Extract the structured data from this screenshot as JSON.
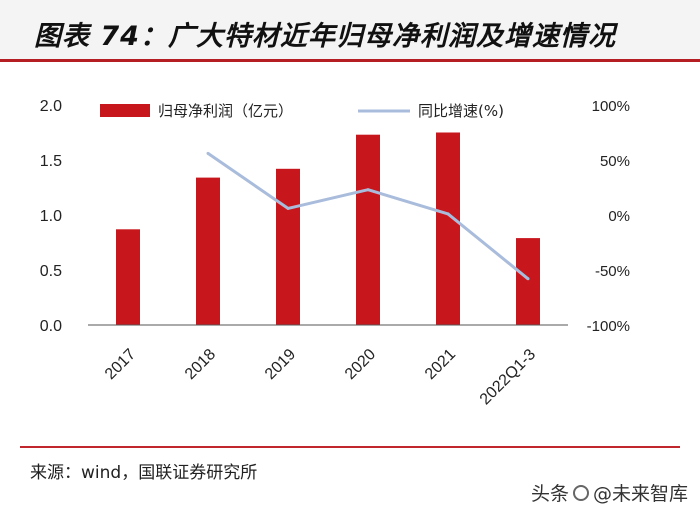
{
  "header": {
    "title": "图表 74：广大特材近年归母净利润及增速情况"
  },
  "footer": {
    "source": "来源：wind，国联证券研究所",
    "watermark_prefix": "头条",
    "watermark_suffix": "@未来智库"
  },
  "chart_data": {
    "type": "bar",
    "title": "",
    "categories": [
      "2017",
      "2018",
      "2019",
      "2020",
      "2021",
      "2022Q1-3"
    ],
    "series": [
      {
        "name": "归母净利润（亿元）",
        "type": "bar",
        "axis": "left",
        "color": "#c8161d",
        "values": [
          0.87,
          1.34,
          1.42,
          1.73,
          1.75,
          0.79
        ]
      },
      {
        "name": "同比增速(%)",
        "type": "line",
        "axis": "right",
        "color": "#a9bcdc",
        "values": [
          null,
          56,
          6,
          23,
          1,
          -58
        ]
      }
    ],
    "y_left": {
      "ylim": [
        0,
        2.0
      ],
      "ticks": [
        "0.0",
        "0.5",
        "1.0",
        "1.5",
        "2.0"
      ],
      "tick_values": [
        0,
        0.5,
        1.0,
        1.5,
        2.0
      ]
    },
    "y_right": {
      "ylim": [
        -100,
        100
      ],
      "ticks": [
        "-100%",
        "-50%",
        "0%",
        "50%",
        "100%"
      ],
      "tick_values": [
        -100,
        -50,
        0,
        50,
        100
      ]
    },
    "xlabel": "",
    "ylabel": "",
    "grid": false,
    "legend": "top"
  }
}
